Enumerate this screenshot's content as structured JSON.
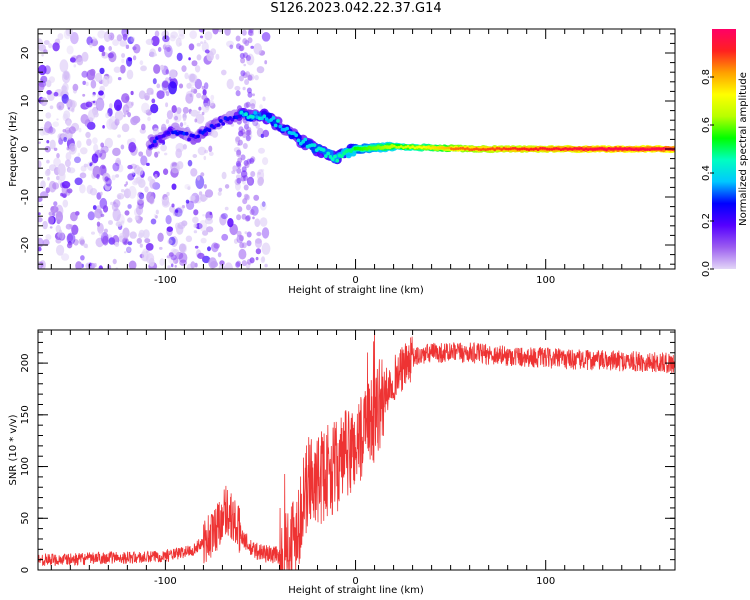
{
  "figure": {
    "title": "S126.2023.042.22.37.G14"
  },
  "chart_data": [
    {
      "type": "heatmap",
      "xlabel": "Height of straight line (km)",
      "ylabel": "Frequency (Hz)",
      "xlim": [
        -167,
        168
      ],
      "ylim": [
        -25,
        25
      ],
      "xticks": [
        -100,
        0,
        100
      ],
      "yticks": [
        -20,
        -10,
        0,
        10,
        20
      ],
      "colorbar": {
        "label": "Normalized spectral amplitude",
        "range": [
          0,
          1
        ],
        "ticks": [
          "0.0",
          "0.2",
          "0.4",
          "0.6",
          "0.8"
        ],
        "colormap": [
          "#e3d6f7",
          "#9b5cf0",
          "#5500ff",
          "#0000ff",
          "#00c8ff",
          "#00ffc0",
          "#00ff00",
          "#b8ff00",
          "#ffff00",
          "#ffa000",
          "#ff2020",
          "#ff0066"
        ]
      },
      "ridge": {
        "description_points": [
          {
            "x": -108,
            "y": 1
          },
          {
            "x": -95,
            "y": 4
          },
          {
            "x": -85,
            "y": 2
          },
          {
            "x": -75,
            "y": 5
          },
          {
            "x": -62,
            "y": 7
          },
          {
            "x": -48,
            "y": 7
          },
          {
            "x": -40,
            "y": 5
          },
          {
            "x": -30,
            "y": 2
          },
          {
            "x": -20,
            "y": 0
          },
          {
            "x": -10,
            "y": -2
          },
          {
            "x": 0,
            "y": 0
          },
          {
            "x": 20,
            "y": 0.5
          },
          {
            "x": 60,
            "y": 0
          },
          {
            "x": 100,
            "y": 0
          },
          {
            "x": 168,
            "y": 0
          }
        ]
      }
    },
    {
      "type": "line",
      "xlabel": "Height of straight line (km)",
      "ylabel": "SNR (10 * v/v)",
      "xlim": [
        -167,
        168
      ],
      "ylim": [
        0,
        232
      ],
      "xticks": [
        -100,
        0,
        100
      ],
      "yticks": [
        0,
        50,
        100,
        150,
        200
      ],
      "color": "#ee3333",
      "series": [
        {
          "x": [
            -167,
            -150,
            -130,
            -110,
            -95,
            -85,
            -75,
            -68,
            -62,
            -55,
            -45,
            -38,
            -33,
            -28,
            -24,
            -20,
            -15,
            -10,
            -5,
            0,
            5,
            10,
            15,
            20,
            25,
            30,
            40,
            60,
            80,
            100,
            120,
            140,
            168
          ],
          "y": [
            10,
            10,
            12,
            12,
            15,
            20,
            35,
            60,
            40,
            20,
            15,
            15,
            30,
            60,
            90,
            85,
            95,
            100,
            110,
            120,
            130,
            150,
            170,
            185,
            195,
            205,
            210,
            210,
            207,
            205,
            203,
            202,
            200
          ]
        }
      ]
    }
  ]
}
